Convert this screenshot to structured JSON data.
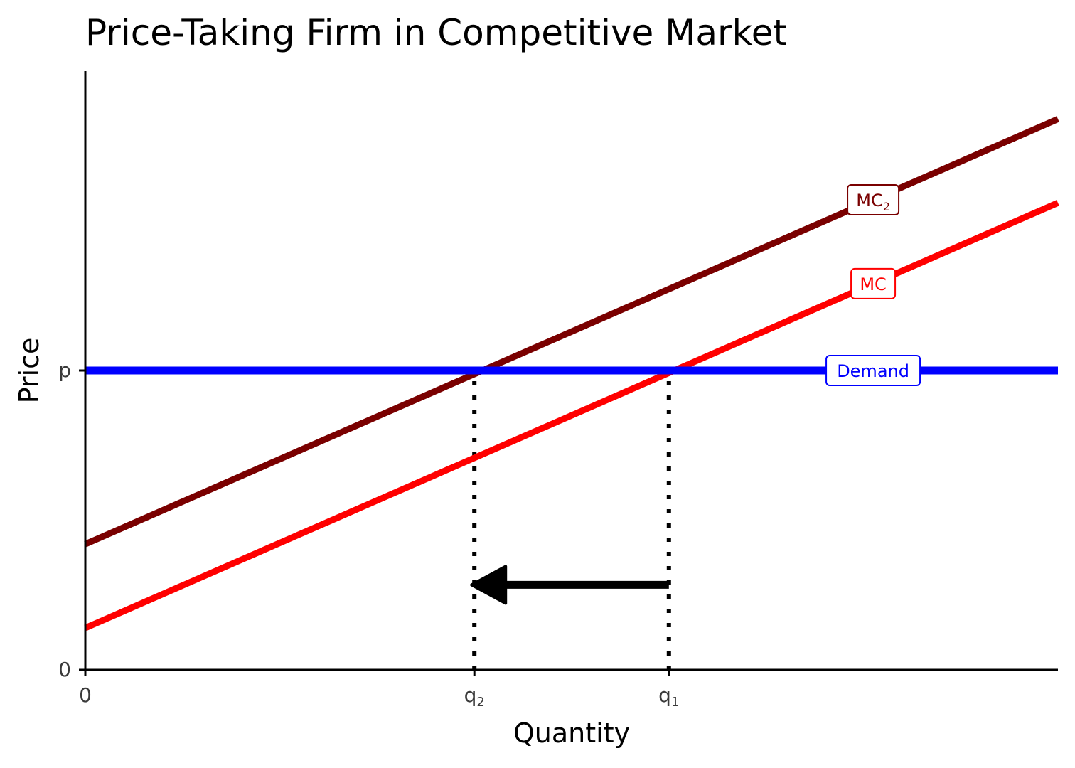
{
  "chart_data": {
    "type": "line",
    "title": "Price-Taking Firm in Competitive Market",
    "xlabel": "Quantity",
    "ylabel": "Price",
    "xlim": [
      0,
      10
    ],
    "ylim": [
      0,
      10
    ],
    "grid": false,
    "x_ticks": [
      {
        "value": 0,
        "label": "0",
        "subscript": ""
      },
      {
        "value": 4,
        "label": "q",
        "subscript": "2"
      },
      {
        "value": 6,
        "label": "q",
        "subscript": "1"
      }
    ],
    "y_ticks": [
      {
        "value": 0,
        "label": "0"
      },
      {
        "value": 5,
        "label": "p"
      }
    ],
    "series": [
      {
        "name": "Demand",
        "label": "Demand",
        "subscript": "",
        "color": "#0000ff",
        "x": [
          0,
          10
        ],
        "y": [
          5,
          5
        ]
      },
      {
        "name": "MC",
        "label": "MC",
        "subscript": "",
        "color": "#ff0000",
        "x": [
          0,
          10
        ],
        "y": [
          0.7,
          7.8
        ]
      },
      {
        "name": "MC2",
        "label": "MC",
        "subscript": "2",
        "color": "#7a0000",
        "x": [
          0,
          10
        ],
        "y": [
          2.1,
          9.2
        ]
      }
    ],
    "reference_lines": [
      {
        "x": 4,
        "y_from": 0,
        "y_to": 5
      },
      {
        "x": 6,
        "y_from": 0,
        "y_to": 5
      }
    ],
    "arrow": {
      "from_x": 6,
      "to_x": 4,
      "y": 1.42,
      "color": "#000000"
    }
  }
}
